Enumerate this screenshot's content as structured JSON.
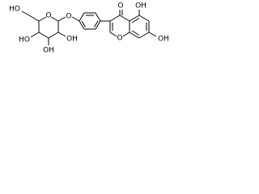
{
  "labels": [
    "HO",
    "O",
    "HO",
    "OH",
    "OH",
    "O",
    "O",
    "OH",
    "O",
    "OH"
  ]
}
